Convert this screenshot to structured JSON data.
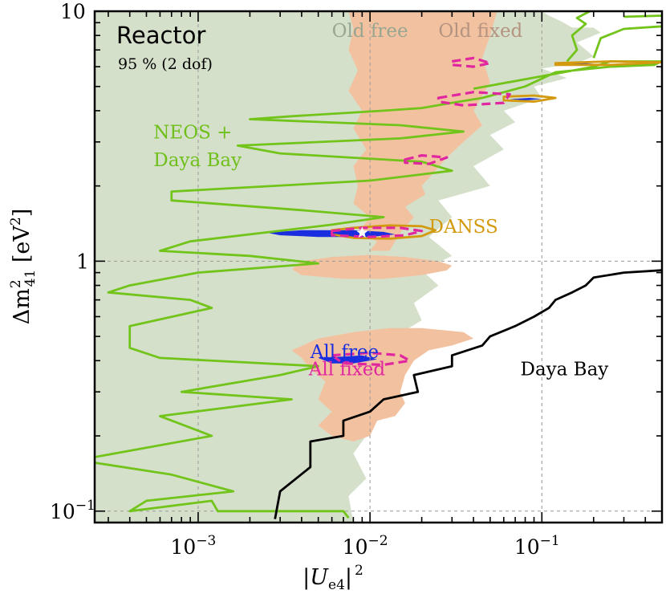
{
  "chart_data": {
    "type": "contour",
    "title": "Reactor",
    "subtitle": "95 % (2 dof)",
    "xlabel": {
      "pre": "|",
      "main": "U",
      "sub": "e4",
      "post": "|",
      "sup": "2"
    },
    "ylabel": {
      "pre": "Δ",
      "main": "m",
      "sub": "41",
      "sup": "2",
      "unit_open": " [eV",
      "unit_sup": "2",
      "unit_close": "]"
    },
    "x_scale": "log",
    "y_scale": "log",
    "xlim": [
      0.00025,
      0.5
    ],
    "ylim": [
      0.09,
      10
    ],
    "x_ticks": [
      {
        "value": 0.001,
        "base": "10",
        "exp": "−3"
      },
      {
        "value": 0.01,
        "base": "10",
        "exp": "−2"
      },
      {
        "value": 0.1,
        "base": "10",
        "exp": "−1"
      }
    ],
    "y_ticks": [
      {
        "value": 0.1,
        "base": "10",
        "exp": "−1"
      },
      {
        "value": 1,
        "base": "1",
        "exp": ""
      },
      {
        "value": 10,
        "base": "10",
        "exp": ""
      }
    ],
    "grid": true,
    "colors": {
      "old_free": "#d5e0cb",
      "old_fixed": "#f2c2a0",
      "neos_daya_bay": "#72c41b",
      "daya_bay": "#000000",
      "danss": "#d39a10",
      "all_free": "#1a2ee0",
      "all_fixed": "#e0279f"
    },
    "labels": {
      "old_free": "Old free",
      "old_fixed": "Old fixed",
      "neos_line1": "NEOS +",
      "neos_line2": "Daya Bay",
      "danss": "DANSS",
      "all_free": "All free",
      "all_fixed": "All fixed",
      "daya_bay": "Daya Bay"
    },
    "label_positions": {
      "old_free": [
        0.006,
        7.9
      ],
      "old_fixed": [
        0.025,
        7.9
      ],
      "neos_line1": [
        0.00055,
        3.1
      ],
      "neos_line2": [
        0.00055,
        2.4
      ],
      "danss": [
        0.022,
        1.3
      ],
      "all_free": [
        0.0045,
        0.41
      ],
      "all_fixed": [
        0.0044,
        0.35
      ],
      "daya_bay": [
        0.075,
        0.35
      ]
    },
    "best_fit": [
      0.009,
      1.3
    ],
    "series": [
      {
        "name": "Old free",
        "kind": "fill",
        "points": [
          [
            0.00025,
            0.09
          ],
          [
            0.00025,
            10
          ],
          [
            0.1,
            10
          ],
          [
            0.11,
            9.6
          ],
          [
            0.13,
            9.1
          ],
          [
            0.15,
            8.6
          ],
          [
            0.2,
            8.6
          ],
          [
            0.22,
            8.2
          ],
          [
            0.16,
            7.5
          ],
          [
            0.2,
            6.6
          ],
          [
            0.16,
            6.2
          ],
          [
            0.1,
            5.9
          ],
          [
            0.14,
            5.4
          ],
          [
            0.09,
            5.0
          ],
          [
            0.1,
            4.5
          ],
          [
            0.06,
            4.0
          ],
          [
            0.07,
            3.6
          ],
          [
            0.05,
            3.2
          ],
          [
            0.06,
            2.8
          ],
          [
            0.04,
            2.4
          ],
          [
            0.05,
            2.0
          ],
          [
            0.025,
            1.75
          ],
          [
            0.03,
            1.5
          ],
          [
            0.022,
            1.25
          ],
          [
            0.03,
            1.05
          ],
          [
            0.02,
            0.92
          ],
          [
            0.025,
            0.8
          ],
          [
            0.018,
            0.68
          ],
          [
            0.02,
            0.58
          ],
          [
            0.014,
            0.5
          ],
          [
            0.013,
            0.38
          ],
          [
            0.01,
            0.3
          ],
          [
            0.011,
            0.23
          ],
          [
            0.008,
            0.17
          ],
          [
            0.0095,
            0.135
          ],
          [
            0.0075,
            0.115
          ],
          [
            0.008,
            0.09
          ]
        ]
      },
      {
        "name": "Old fixed",
        "kind": "fill",
        "points": [
          [
            0.0075,
            10
          ],
          [
            0.055,
            10
          ],
          [
            0.05,
            8.0
          ],
          [
            0.045,
            6.5
          ],
          [
            0.05,
            5.2
          ],
          [
            0.04,
            4.0
          ],
          [
            0.045,
            3.5
          ],
          [
            0.035,
            3.0
          ],
          [
            0.028,
            2.6
          ],
          [
            0.024,
            2.3
          ],
          [
            0.02,
            2.0
          ],
          [
            0.021,
            1.85
          ],
          [
            0.016,
            1.65
          ],
          [
            0.018,
            1.5
          ],
          [
            0.015,
            1.3
          ],
          [
            0.013,
            1.1
          ],
          [
            0.01,
            1.1
          ],
          [
            0.011,
            1.2
          ],
          [
            0.0085,
            1.3
          ],
          [
            0.01,
            1.5
          ],
          [
            0.008,
            1.7
          ],
          [
            0.0085,
            2.0
          ],
          [
            0.008,
            2.4
          ],
          [
            0.0095,
            2.8
          ],
          [
            0.008,
            3.4
          ],
          [
            0.009,
            4.0
          ],
          [
            0.0075,
            4.8
          ],
          [
            0.0085,
            5.8
          ],
          [
            0.0075,
            7.0
          ],
          [
            0.008,
            8.5
          ]
        ]
      },
      {
        "name": "Old fixed",
        "kind": "fill",
        "points": [
          [
            0.0035,
            0.93
          ],
          [
            0.004,
            1.0
          ],
          [
            0.006,
            1.04
          ],
          [
            0.01,
            1.06
          ],
          [
            0.016,
            1.04
          ],
          [
            0.025,
            1.0
          ],
          [
            0.03,
            0.96
          ],
          [
            0.028,
            0.92
          ],
          [
            0.02,
            0.88
          ],
          [
            0.012,
            0.85
          ],
          [
            0.007,
            0.85
          ],
          [
            0.004,
            0.88
          ]
        ]
      },
      {
        "name": "Old fixed",
        "kind": "fill",
        "points": [
          [
            0.0035,
            0.44
          ],
          [
            0.005,
            0.49
          ],
          [
            0.008,
            0.52
          ],
          [
            0.013,
            0.54
          ],
          [
            0.02,
            0.54
          ],
          [
            0.035,
            0.52
          ],
          [
            0.04,
            0.49
          ],
          [
            0.03,
            0.46
          ],
          [
            0.022,
            0.44
          ],
          [
            0.018,
            0.4
          ],
          [
            0.016,
            0.35
          ],
          [
            0.015,
            0.3
          ],
          [
            0.016,
            0.27
          ],
          [
            0.014,
            0.24
          ],
          [
            0.011,
            0.23
          ],
          [
            0.01,
            0.2
          ],
          [
            0.008,
            0.19
          ],
          [
            0.006,
            0.2
          ],
          [
            0.005,
            0.22
          ],
          [
            0.006,
            0.25
          ],
          [
            0.005,
            0.28
          ],
          [
            0.0055,
            0.33
          ],
          [
            0.0045,
            0.37
          ],
          [
            0.004,
            0.41
          ]
        ]
      },
      {
        "name": "NEOS + Daya Bay",
        "kind": "line",
        "points": [
          [
            0.04,
            4.9
          ],
          [
            0.2,
            6.0
          ],
          [
            0.25,
            6.3
          ],
          [
            0.5,
            6.3
          ],
          [
            0.45,
            6.1
          ],
          [
            0.25,
            6.0
          ],
          [
            0.12,
            5.7
          ],
          [
            0.08,
            5.0
          ],
          [
            0.045,
            4.5
          ],
          [
            0.03,
            4.3
          ],
          [
            0.02,
            4.1
          ],
          [
            0.012,
            4.0
          ],
          [
            0.0035,
            3.8
          ],
          [
            0.002,
            3.7
          ],
          [
            0.015,
            3.5
          ],
          [
            0.035,
            3.3
          ],
          [
            0.015,
            3.1
          ],
          [
            0.0017,
            2.9
          ],
          [
            0.003,
            2.7
          ],
          [
            0.02,
            2.5
          ],
          [
            0.03,
            2.3
          ],
          [
            0.01,
            2.1
          ],
          [
            0.0007,
            1.9
          ],
          [
            0.0007,
            1.75
          ],
          [
            0.004,
            1.6
          ],
          [
            0.012,
            1.5
          ],
          [
            0.006,
            1.4
          ],
          [
            0.0009,
            1.2
          ],
          [
            0.0006,
            1.1
          ],
          [
            0.002,
            1.05
          ],
          [
            0.005,
            0.98
          ],
          [
            0.001,
            0.9
          ],
          [
            0.0004,
            0.8
          ],
          [
            0.0003,
            0.75
          ],
          [
            0.0009,
            0.7
          ],
          [
            0.0012,
            0.65
          ],
          [
            0.0004,
            0.55
          ],
          [
            0.0004,
            0.45
          ],
          [
            0.0006,
            0.41
          ],
          [
            0.005,
            0.38
          ],
          [
            0.003,
            0.35
          ],
          [
            0.0008,
            0.3
          ],
          [
            0.0035,
            0.28
          ],
          [
            0.0006,
            0.24
          ],
          [
            0.0012,
            0.2
          ],
          [
            0.0002,
            0.16
          ],
          [
            0.0007,
            0.14
          ],
          [
            0.0016,
            0.12
          ],
          [
            0.0005,
            0.11
          ],
          [
            0.0004,
            0.1
          ],
          [
            0.0012,
            0.11
          ],
          [
            0.0013,
            0.1
          ],
          [
            0.007,
            0.1
          ],
          [
            0.0075,
            0.094
          ]
        ]
      },
      {
        "name": "NEOS + Daya Bay",
        "kind": "line",
        "points": [
          [
            0.14,
            6.3
          ],
          [
            0.16,
            7.0
          ],
          [
            0.15,
            8.0
          ],
          [
            0.18,
            8.9
          ],
          [
            0.16,
            9.4
          ],
          [
            0.19,
            10.0
          ]
        ]
      },
      {
        "name": "NEOS + Daya Bay",
        "kind": "line",
        "points": [
          [
            0.2,
            6.5
          ],
          [
            0.22,
            7.8
          ],
          [
            0.3,
            8.5
          ],
          [
            0.5,
            8.7
          ]
        ]
      },
      {
        "name": "NEOS + Daya Bay",
        "kind": "line",
        "points": [
          [
            0.3,
            9.5
          ],
          [
            0.5,
            9.6
          ]
        ]
      },
      {
        "name": "Daya Bay",
        "kind": "line",
        "points": [
          [
            0.0028,
            0.093
          ],
          [
            0.003,
            0.12
          ],
          [
            0.0045,
            0.15
          ],
          [
            0.0045,
            0.19
          ],
          [
            0.007,
            0.2
          ],
          [
            0.007,
            0.23
          ],
          [
            0.01,
            0.25
          ],
          [
            0.012,
            0.28
          ],
          [
            0.019,
            0.3
          ],
          [
            0.018,
            0.35
          ],
          [
            0.03,
            0.38
          ],
          [
            0.03,
            0.42
          ],
          [
            0.045,
            0.46
          ],
          [
            0.05,
            0.5
          ],
          [
            0.07,
            0.55
          ],
          [
            0.09,
            0.6
          ],
          [
            0.11,
            0.65
          ],
          [
            0.12,
            0.7
          ],
          [
            0.15,
            0.75
          ],
          [
            0.18,
            0.8
          ],
          [
            0.2,
            0.86
          ],
          [
            0.3,
            0.9
          ],
          [
            0.5,
            0.92
          ]
        ]
      },
      {
        "name": "DANSS",
        "kind": "line",
        "points": [
          [
            0.008,
            1.36
          ],
          [
            0.013,
            1.39
          ],
          [
            0.02,
            1.38
          ],
          [
            0.024,
            1.33
          ],
          [
            0.02,
            1.26
          ],
          [
            0.013,
            1.23
          ],
          [
            0.008,
            1.24
          ],
          [
            0.006,
            1.28
          ],
          [
            0.006,
            1.33
          ]
        ]
      },
      {
        "name": "DANSS",
        "kind": "line",
        "points": [
          [
            0.06,
            4.55
          ],
          [
            0.09,
            4.6
          ],
          [
            0.12,
            4.5
          ],
          [
            0.09,
            4.35
          ],
          [
            0.06,
            4.4
          ]
        ]
      },
      {
        "name": "DANSS",
        "kind": "line",
        "points": [
          [
            0.12,
            6.2
          ],
          [
            0.25,
            6.3
          ],
          [
            0.5,
            6.25
          ],
          [
            0.25,
            6.1
          ],
          [
            0.12,
            6.1
          ]
        ]
      },
      {
        "name": "All free",
        "kind": "fill",
        "points": [
          [
            0.0025,
            1.3
          ],
          [
            0.004,
            1.33
          ],
          [
            0.008,
            1.33
          ],
          [
            0.012,
            1.31
          ],
          [
            0.014,
            1.28
          ],
          [
            0.01,
            1.25
          ],
          [
            0.005,
            1.25
          ],
          [
            0.003,
            1.27
          ]
        ]
      },
      {
        "name": "All free",
        "kind": "fill",
        "points": [
          [
            0.005,
            0.41
          ],
          [
            0.007,
            0.415
          ],
          [
            0.009,
            0.42
          ],
          [
            0.011,
            0.405
          ],
          [
            0.008,
            0.39
          ],
          [
            0.006,
            0.39
          ]
        ]
      },
      {
        "name": "All free",
        "kind": "fill",
        "points": [
          [
            0.065,
            4.45
          ],
          [
            0.085,
            4.5
          ],
          [
            0.1,
            4.45
          ],
          [
            0.08,
            4.4
          ]
        ]
      },
      {
        "name": "All free",
        "kind": "fill",
        "points": [
          [
            0.13,
            6.2
          ],
          [
            0.17,
            6.22
          ],
          [
            0.2,
            6.18
          ],
          [
            0.16,
            6.14
          ]
        ]
      },
      {
        "name": "All fixed",
        "kind": "line",
        "points": [
          [
            0.006,
            1.32
          ],
          [
            0.009,
            1.36
          ],
          [
            0.015,
            1.36
          ],
          [
            0.02,
            1.32
          ],
          [
            0.016,
            1.27
          ],
          [
            0.01,
            1.25
          ],
          [
            0.006,
            1.27
          ]
        ]
      },
      {
        "name": "All fixed",
        "kind": "line",
        "points": [
          [
            0.006,
            0.42
          ],
          [
            0.01,
            0.43
          ],
          [
            0.015,
            0.42
          ],
          [
            0.017,
            0.4
          ],
          [
            0.012,
            0.385
          ],
          [
            0.007,
            0.39
          ]
        ]
      },
      {
        "name": "All fixed",
        "kind": "line",
        "points": [
          [
            0.016,
            2.55
          ],
          [
            0.02,
            2.65
          ],
          [
            0.028,
            2.6
          ],
          [
            0.022,
            2.45
          ],
          [
            0.016,
            2.48
          ]
        ]
      },
      {
        "name": "All fixed",
        "kind": "line",
        "points": [
          [
            0.025,
            4.5
          ],
          [
            0.04,
            4.75
          ],
          [
            0.065,
            4.65
          ],
          [
            0.06,
            4.3
          ],
          [
            0.035,
            4.2
          ],
          [
            0.025,
            4.35
          ]
        ]
      },
      {
        "name": "All fixed",
        "kind": "line",
        "points": [
          [
            0.03,
            6.3
          ],
          [
            0.04,
            6.5
          ],
          [
            0.05,
            6.2
          ],
          [
            0.04,
            6.0
          ],
          [
            0.03,
            6.1
          ]
        ]
      }
    ]
  }
}
